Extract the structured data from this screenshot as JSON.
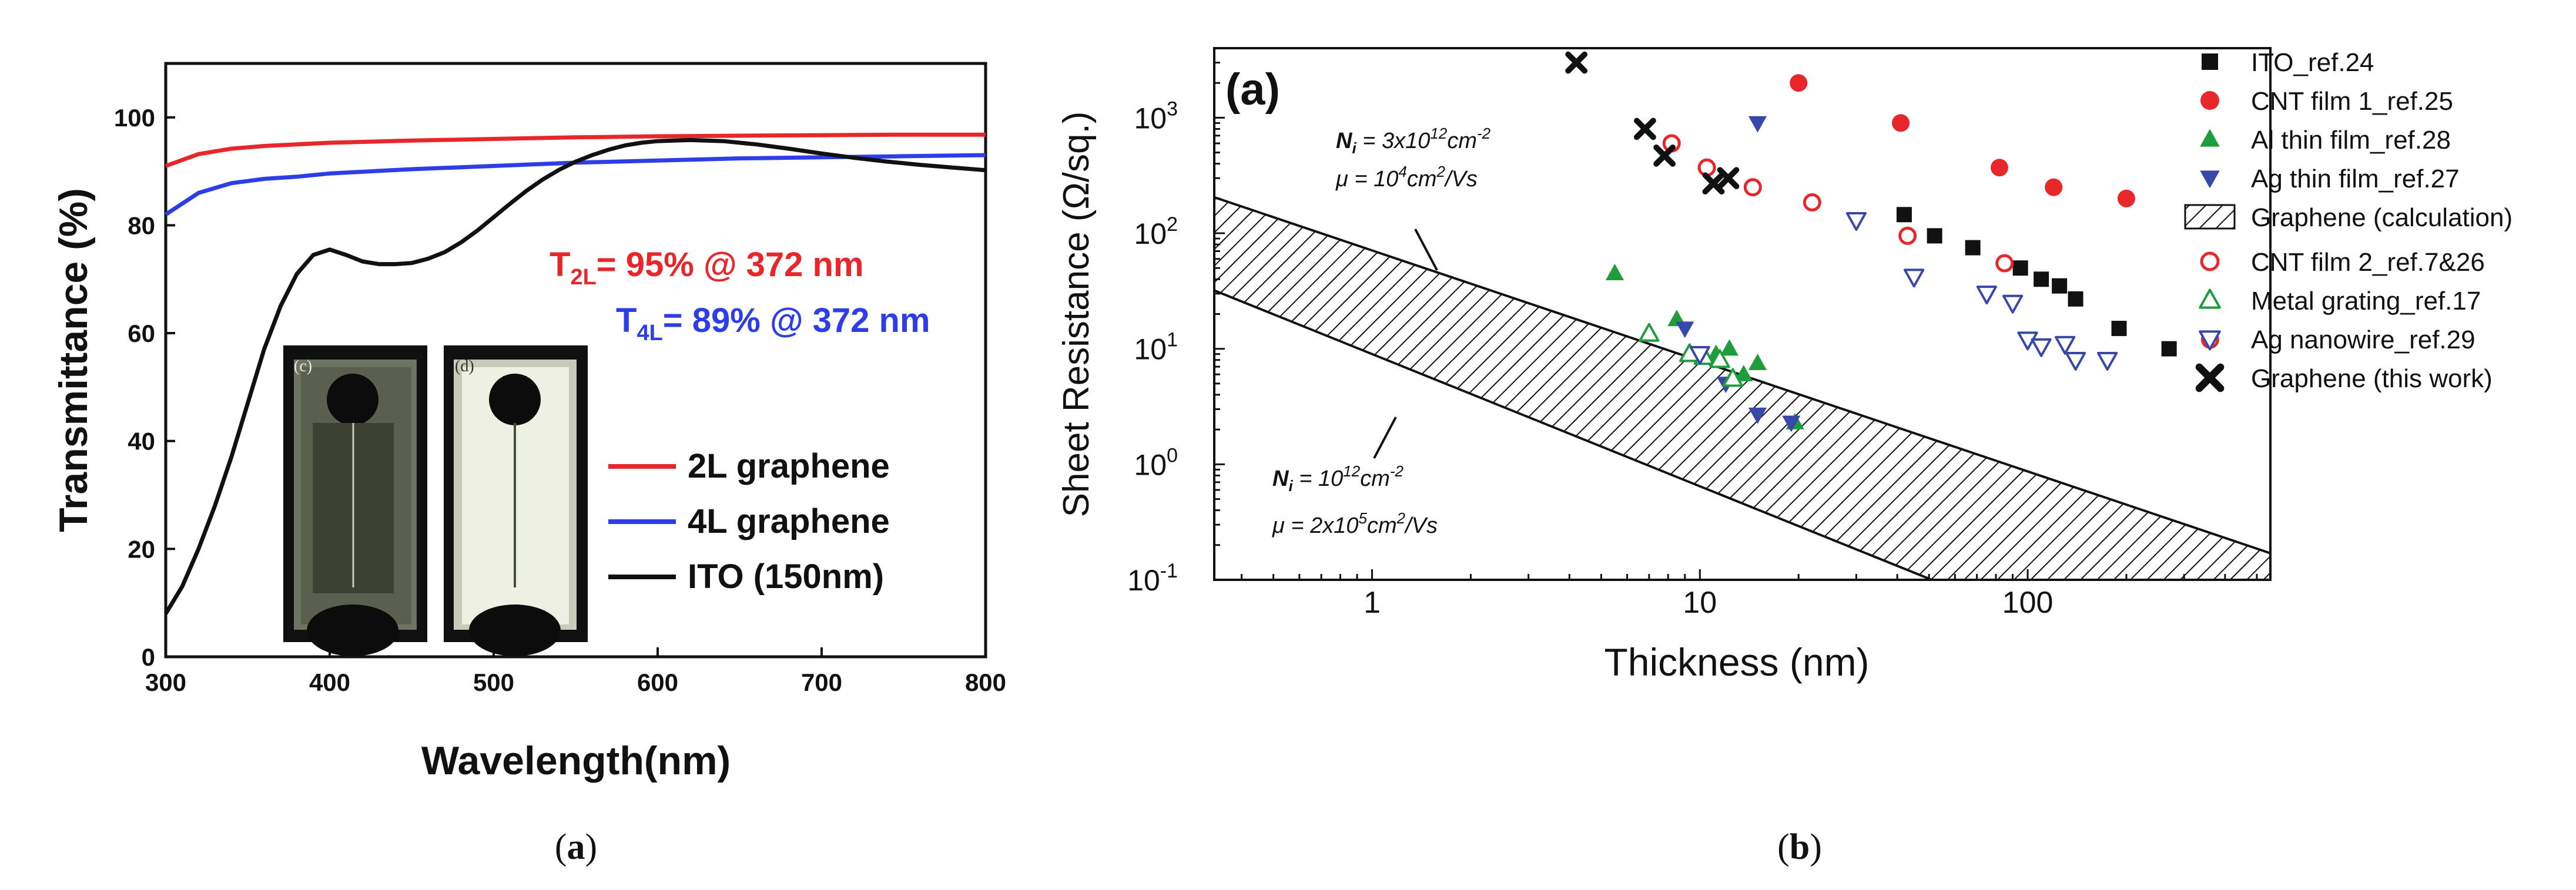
{
  "colors": {
    "red": "#e8272b",
    "blue": "#2e3ee6",
    "black": "#111111",
    "green": "#1f9d3a",
    "navy": "#3748a8"
  },
  "captions": {
    "a": "a",
    "b": "b"
  },
  "chart_data": [
    {
      "type": "line",
      "panel": "a",
      "xlabel": "Wavelength(nm)",
      "ylabel": "Transmittance (%)",
      "xlim": [
        300,
        800
      ],
      "ylim": [
        0,
        110
      ],
      "xticks": [
        "300",
        "400",
        "500",
        "600",
        "700",
        "800"
      ],
      "yticks": [
        "0",
        "20",
        "40",
        "60",
        "80",
        "100"
      ],
      "series": [
        {
          "name": "2L graphene",
          "color": "#e8272b",
          "x": [
            300,
            320,
            340,
            360,
            380,
            400,
            450,
            500,
            550,
            600,
            650,
            700,
            750,
            800
          ],
          "y": [
            91,
            93.2,
            94.2,
            94.7,
            95,
            95.3,
            95.7,
            96,
            96.3,
            96.5,
            96.6,
            96.7,
            96.8,
            96.8
          ]
        },
        {
          "name": "4L graphene",
          "color": "#2e3ee6",
          "x": [
            300,
            320,
            340,
            360,
            380,
            400,
            450,
            500,
            550,
            600,
            650,
            700,
            750,
            800
          ],
          "y": [
            82,
            86,
            87.8,
            88.6,
            89,
            89.6,
            90.4,
            91,
            91.6,
            92,
            92.4,
            92.6,
            92.8,
            93
          ]
        },
        {
          "name": "ITO (150nm)",
          "color": "#111111",
          "x": [
            300,
            310,
            320,
            330,
            340,
            350,
            360,
            370,
            380,
            390,
            400,
            410,
            420,
            430,
            440,
            450,
            460,
            470,
            480,
            490,
            500,
            510,
            520,
            530,
            540,
            550,
            560,
            570,
            580,
            590,
            600,
            620,
            640,
            660,
            680,
            700,
            720,
            740,
            760,
            780,
            800
          ],
          "y": [
            8,
            13,
            20,
            28,
            37,
            47,
            57,
            65,
            71,
            74.5,
            75.5,
            74.5,
            73.3,
            72.8,
            72.8,
            73,
            73.8,
            75,
            76.8,
            79,
            81.5,
            84,
            86.4,
            88.5,
            90.3,
            91.8,
            93,
            94,
            94.8,
            95.3,
            95.6,
            95.8,
            95.6,
            95,
            94.2,
            93.3,
            92.5,
            91.8,
            91.2,
            90.7,
            90.2
          ]
        }
      ],
      "annotations": [
        {
          "sym": "T",
          "sub": "2L",
          "rest": "= 95% @ 372 nm",
          "color": "#e8272b"
        },
        {
          "sym": "T",
          "sub": "4L",
          "rest": "= 89% @ 372 nm",
          "color": "#2e3ee6"
        }
      ],
      "inset_labels": [
        "(c)",
        "(d)"
      ]
    },
    {
      "type": "scatter",
      "panel": "b",
      "panel_label": "(a)",
      "xscale": "log",
      "yscale": "log",
      "xlabel": "Thickness (nm)",
      "ylabel": "Sheet Resistance (Ω/sq.)",
      "xlim": [
        0.33,
        550
      ],
      "ylim": [
        0.1,
        4000
      ],
      "xticks": [
        {
          "v": 1,
          "base": "1"
        },
        {
          "v": 10,
          "base": "10"
        },
        {
          "v": 100,
          "base": "100"
        }
      ],
      "yticks": [
        {
          "v": 0.1,
          "base": "10",
          "exp": "-1"
        },
        {
          "v": 1,
          "base": "10",
          "exp": "0"
        },
        {
          "v": 10,
          "base": "10",
          "exp": "1"
        },
        {
          "v": 100,
          "base": "10",
          "exp": "2"
        },
        {
          "v": 1000,
          "base": "10",
          "exp": "3"
        }
      ],
      "band": {
        "name": "Graphene (calculation)",
        "upper": {
          "x": [
            0.33,
            550
          ],
          "y": [
            205,
            0.17
          ]
        },
        "lower": {
          "x": [
            0.33,
            51
          ],
          "y": [
            32,
            0.1
          ]
        }
      },
      "band_labels": [
        {
          "N": "N",
          "i": "i",
          "eq": " = 3x10",
          "exp": "12",
          "unit": "cm",
          "uexp": "-2",
          "mu": "μ = 10",
          "muexp": "4",
          "muunit": "cm",
          "muexp2": "2",
          "mutail": "/Vs"
        },
        {
          "N": "N",
          "i": "i",
          "eq": " = 10",
          "exp": "12",
          "unit": "cm",
          "uexp": "-2",
          "mu": "μ = 2x10",
          "muexp": "5",
          "muunit": "cm",
          "muexp2": "2",
          "mutail": "/Vs"
        }
      ],
      "series": [
        {
          "name": "ITO_ref.24",
          "marker": "square",
          "fill": true,
          "color": "#111111",
          "x": [
            42,
            52,
            68,
            95,
            110,
            125,
            140,
            190,
            270
          ],
          "y": [
            145,
            95,
            75,
            50,
            40,
            35,
            27,
            15,
            10
          ]
        },
        {
          "name": "CNT film 1_ref.25",
          "marker": "circle",
          "fill": true,
          "color": "#e8272b",
          "x": [
            20,
            41,
            82,
            120,
            200
          ],
          "y": [
            2000,
            900,
            370,
            250,
            200
          ]
        },
        {
          "name": "Al thin film_ref.28",
          "marker": "triangle-up",
          "fill": true,
          "color": "#1f9d3a",
          "x": [
            5.5,
            8.5,
            10.2,
            11.2,
            12.3,
            13.6,
            15,
            19.5
          ],
          "y": [
            45,
            18,
            8.5,
            9,
            10,
            6,
            7.5,
            2.3
          ]
        },
        {
          "name": "Ag thin film_ref.27",
          "marker": "triangle-down",
          "fill": true,
          "color": "#3748a8",
          "x": [
            15,
            9,
            12,
            15,
            19
          ],
          "y": [
            900,
            15,
            5,
            2.7,
            2.3
          ]
        },
        {
          "name": "CNT film 2_ref.7&26",
          "marker": "circle",
          "fill": false,
          "color": "#e8272b",
          "x": [
            8.2,
            10.5,
            14.5,
            22,
            43,
            85,
            360
          ],
          "y": [
            600,
            370,
            250,
            185,
            95,
            55,
            12
          ]
        },
        {
          "name": "Metal grating_ref.17",
          "marker": "triangle-up",
          "fill": false,
          "color": "#1f9d3a",
          "x": [
            7,
            9.3,
            10.3,
            11.5,
            12.6
          ],
          "y": [
            13.5,
            9,
            8.5,
            8,
            5.5
          ]
        },
        {
          "name": "Ag nanowire_ref.29",
          "marker": "triangle-down",
          "fill": false,
          "color": "#3748a8",
          "x": [
            10,
            30,
            45,
            75,
            90,
            100,
            110,
            130,
            140,
            175
          ],
          "y": [
            9,
            130,
            42,
            30,
            25,
            12,
            10.5,
            11,
            8,
            8
          ]
        },
        {
          "name": "Graphene (this work)",
          "marker": "x",
          "fill": true,
          "color": "#111111",
          "x": [
            4.2,
            6.8,
            7.8,
            11,
            12.2
          ],
          "y": [
            3000,
            800,
            470,
            270,
            300
          ]
        }
      ]
    }
  ]
}
